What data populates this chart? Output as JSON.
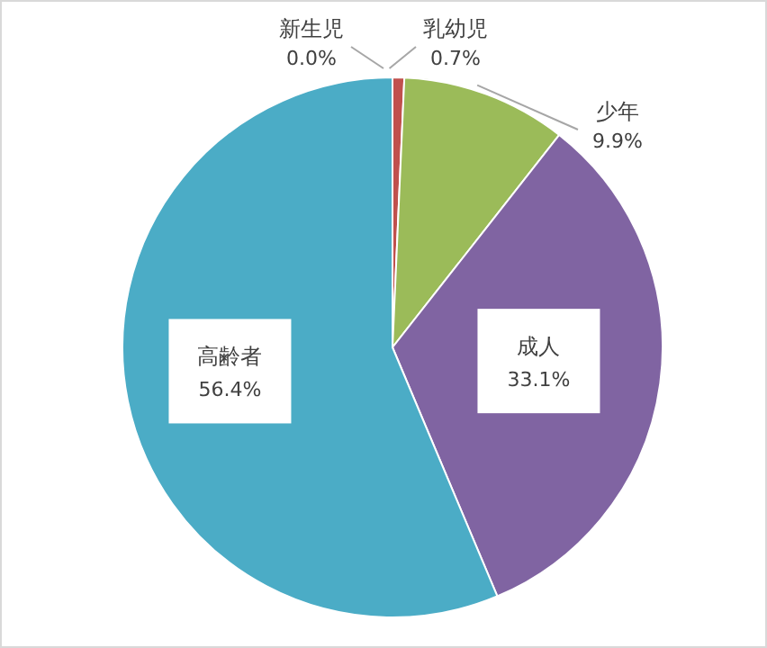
{
  "chart_data": {
    "type": "pie",
    "categories": [
      "新生児",
      "乳幼児",
      "少年",
      "成人",
      "高齢者"
    ],
    "values": [
      0.0,
      0.7,
      9.9,
      33.1,
      56.4
    ],
    "colors": [
      "#4f81bd",
      "#c0504d",
      "#9bbb59",
      "#8064a2",
      "#4bacc6"
    ],
    "value_labels": [
      "0.0%",
      "0.7%",
      "9.9%",
      "33.1%",
      "56.4%"
    ]
  }
}
